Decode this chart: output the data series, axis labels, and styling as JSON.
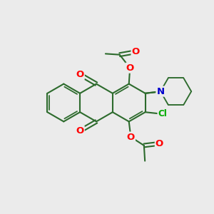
{
  "bg_color": "#ebebeb",
  "bond_color": "#2d6b2d",
  "bond_width": 1.5,
  "atom_colors": {
    "O": "#ff0000",
    "N": "#0000cd",
    "Cl": "#00aa00"
  },
  "font_size": 9.5,
  "fig_size": [
    3.0,
    3.0
  ],
  "dpi": 100
}
